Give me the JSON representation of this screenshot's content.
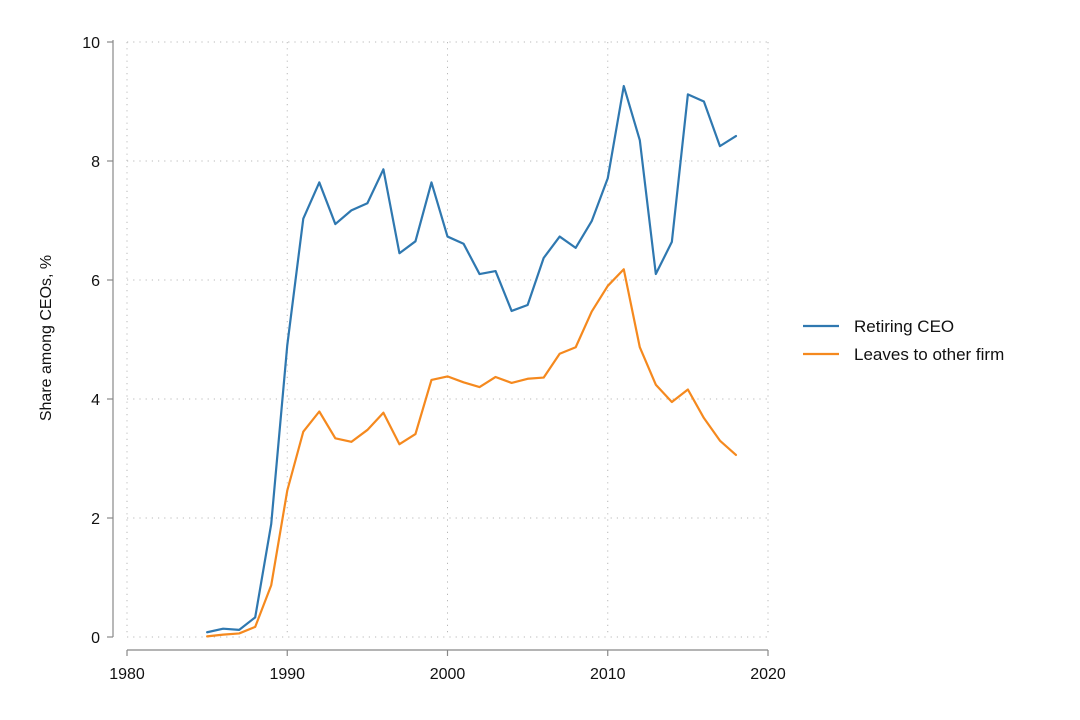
{
  "chart_data": {
    "type": "line",
    "ylabel": "Share among CEOs, %",
    "xlabel": "",
    "xlim": [
      1980,
      2020
    ],
    "ylim": [
      0,
      10
    ],
    "x_ticks": [
      1980,
      1990,
      2000,
      2010,
      2020
    ],
    "y_ticks": [
      0,
      2,
      4,
      6,
      8,
      10
    ],
    "grid": true,
    "legend_position": "right",
    "x": [
      1985,
      1986,
      1987,
      1988,
      1989,
      1990,
      1991,
      1992,
      1993,
      1994,
      1995,
      1996,
      1997,
      1998,
      1999,
      2000,
      2001,
      2002,
      2003,
      2004,
      2005,
      2006,
      2007,
      2008,
      2009,
      2010,
      2011,
      2012,
      2013,
      2014,
      2015,
      2016,
      2017,
      2018
    ],
    "series": [
      {
        "name": "Retiring CEO",
        "color": "#2f78b0",
        "values": [
          0.08,
          0.14,
          0.12,
          0.33,
          1.9,
          4.9,
          7.03,
          7.64,
          6.94,
          7.17,
          7.29,
          7.86,
          6.45,
          6.65,
          7.64,
          6.73,
          6.61,
          6.1,
          6.15,
          5.48,
          5.58,
          6.37,
          6.73,
          6.54,
          6.99,
          7.71,
          9.26,
          8.35,
          6.1,
          6.64,
          9.12,
          9.0,
          8.25,
          8.42
        ]
      },
      {
        "name": "Leaves to other firm",
        "color": "#f5891e",
        "values": [
          0.01,
          0.04,
          0.06,
          0.17,
          0.87,
          2.46,
          3.45,
          3.79,
          3.34,
          3.28,
          3.48,
          3.77,
          3.24,
          3.41,
          4.32,
          4.38,
          4.28,
          4.2,
          4.37,
          4.27,
          4.34,
          4.36,
          4.76,
          4.87,
          5.47,
          5.9,
          6.18,
          4.87,
          4.24,
          3.95,
          4.16,
          3.68,
          3.3,
          3.06
        ]
      }
    ]
  }
}
